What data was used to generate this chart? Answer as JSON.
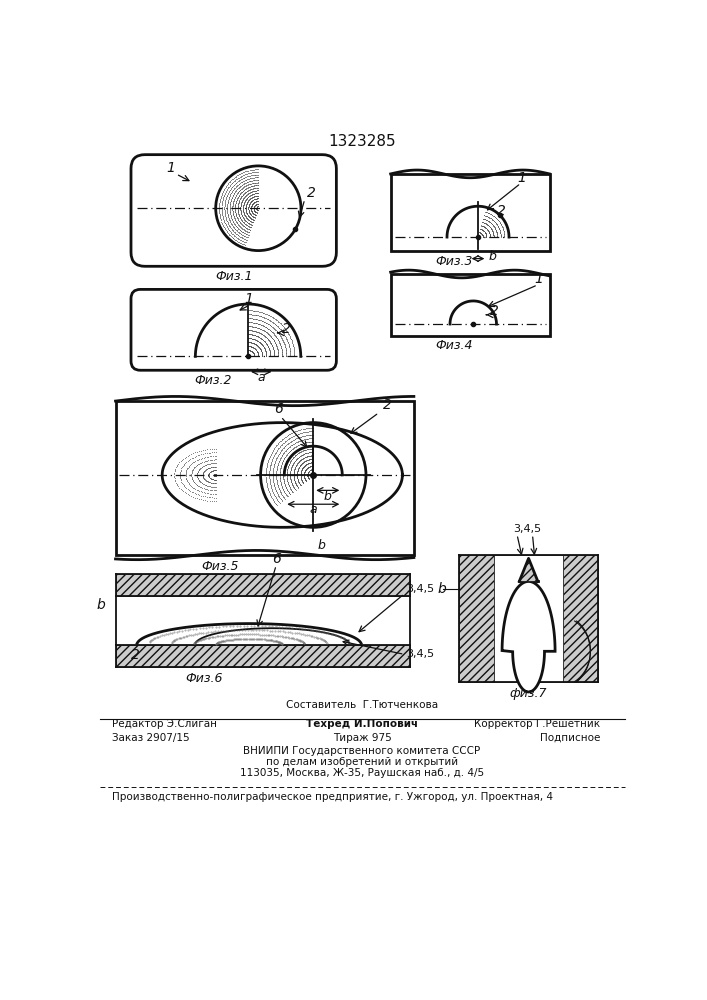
{
  "title": "1323285",
  "lc": "#111111",
  "fig1_label": "Физ.1",
  "fig2_label": "Физ.2",
  "fig3_label": "Физ.3",
  "fig4_label": "Физ.4",
  "fig5_label": "Физ.5",
  "fig6_label": "Физ.6",
  "fig7_label": "физ.7",
  "footer_comp": "Составитель  Г.Тютченкова",
  "footer_editor": "Редактор Э.Слиган",
  "footer_tech": "Техред И.Попович",
  "footer_corr": "Корректор Г.Решетник",
  "footer_order": "Заказ 2907/15",
  "footer_circ": "Тираж 975",
  "footer_sub": "Подписное",
  "footer_org1": "ВНИИПИ Государственного комитета СССР",
  "footer_org2": "по делам изобретений и открытий",
  "footer_org3": "113035, Москва, Ж-35, Раушская наб., д. 4/5",
  "footer_prod": "Производственно-полиграфическое предприятие, г. Ужгород, ул. Проектная, 4"
}
